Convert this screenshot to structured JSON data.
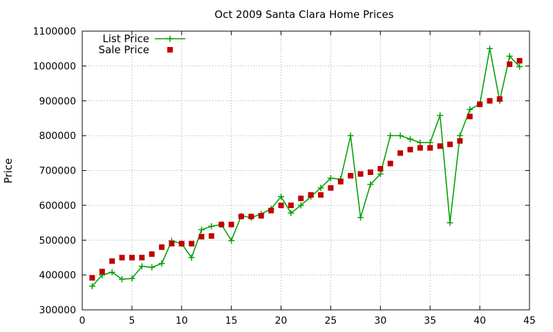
{
  "chart_data": {
    "type": "line",
    "title": "Oct 2009 Santa Clara Home Prices",
    "xlabel": "",
    "ylabel": "Price",
    "xlim": [
      0,
      45
    ],
    "ylim": [
      300000,
      1100000
    ],
    "x_ticks": [
      0,
      5,
      10,
      15,
      20,
      25,
      30,
      35,
      40,
      45
    ],
    "y_ticks": [
      300000,
      400000,
      500000,
      600000,
      700000,
      800000,
      900000,
      1000000,
      1100000
    ],
    "grid": true,
    "legend": "top-left",
    "x": [
      1,
      2,
      3,
      4,
      5,
      6,
      7,
      8,
      9,
      10,
      11,
      12,
      13,
      14,
      15,
      16,
      17,
      18,
      19,
      20,
      21,
      22,
      23,
      24,
      25,
      26,
      27,
      28,
      29,
      30,
      31,
      32,
      33,
      34,
      35,
      36,
      37,
      38,
      39,
      40,
      41,
      42,
      43,
      44
    ],
    "series": [
      {
        "name": "List Price",
        "style": "linespoints",
        "color": "#00a000",
        "values": [
          368000,
          400000,
          408000,
          388000,
          390000,
          425000,
          422000,
          433000,
          498000,
          490000,
          450000,
          530000,
          540000,
          545000,
          499000,
          570000,
          565000,
          575000,
          590000,
          625000,
          578000,
          600000,
          625000,
          650000,
          678000,
          675000,
          800000,
          565000,
          660000,
          690000,
          800000,
          800000,
          790000,
          780000,
          780000,
          858000,
          550000,
          800000,
          875000,
          890000,
          1050000,
          900000,
          1028000,
          998000
        ]
      },
      {
        "name": "Sale Price",
        "style": "points",
        "color": "#c00000",
        "values": [
          392000,
          410000,
          440000,
          450000,
          450000,
          450000,
          460000,
          480000,
          490000,
          490000,
          490000,
          510000,
          512000,
          545000,
          545000,
          568000,
          568000,
          570000,
          585000,
          600000,
          600000,
          620000,
          630000,
          630000,
          650000,
          668000,
          685000,
          690000,
          695000,
          705000,
          720000,
          750000,
          760000,
          765000,
          765000,
          770000,
          775000,
          785000,
          855000,
          890000,
          900000,
          905000,
          1005000,
          1015000
        ]
      }
    ]
  }
}
